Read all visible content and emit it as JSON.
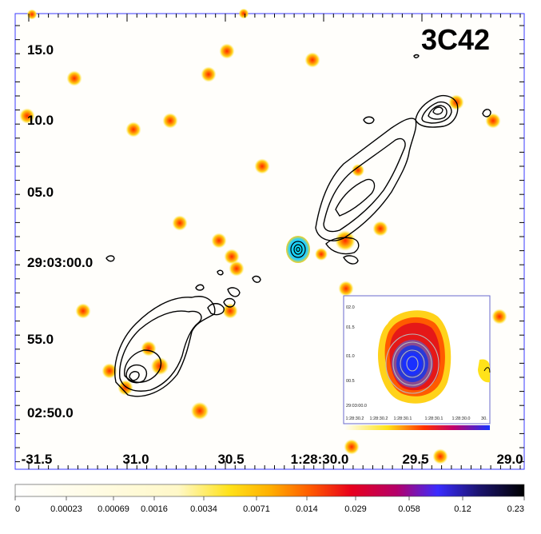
{
  "chart_data": {
    "type": "heatmap",
    "title": "3C42",
    "xlabel": "",
    "ylabel": "",
    "x_ticks": [
      "-31.5",
      "31.0",
      "30.5",
      "1:28:30.0",
      "29.5",
      "29.0"
    ],
    "y_ticks": [
      "15.0",
      "10.0",
      "05.0",
      "29:03:00.0",
      "55.0",
      "02:50.0"
    ],
    "colorbar": {
      "ticks": [
        "0",
        "0.00023",
        "0.00069",
        "0.0016",
        "0.0034",
        "0.0071",
        "0.014",
        "0.029",
        "0.058",
        "0.12",
        "0.23"
      ],
      "colors": [
        "#ffffff",
        "#fff8c8",
        "#ffe21a",
        "#ffb000",
        "#ff5a00",
        "#e8001c",
        "#b4006a",
        "#3a2cff",
        "#1b1470",
        "#000000"
      ]
    },
    "inset": {
      "x_ticks": [
        "1:28:30.2",
        "1:28:30.2",
        "1:28:30.1",
        "1:28:30.1",
        "1:28:30.0",
        "30."
      ],
      "y_ticks": [
        "02.0",
        "01.5",
        "01.0",
        "00.5",
        "29:03:00.0"
      ]
    }
  }
}
